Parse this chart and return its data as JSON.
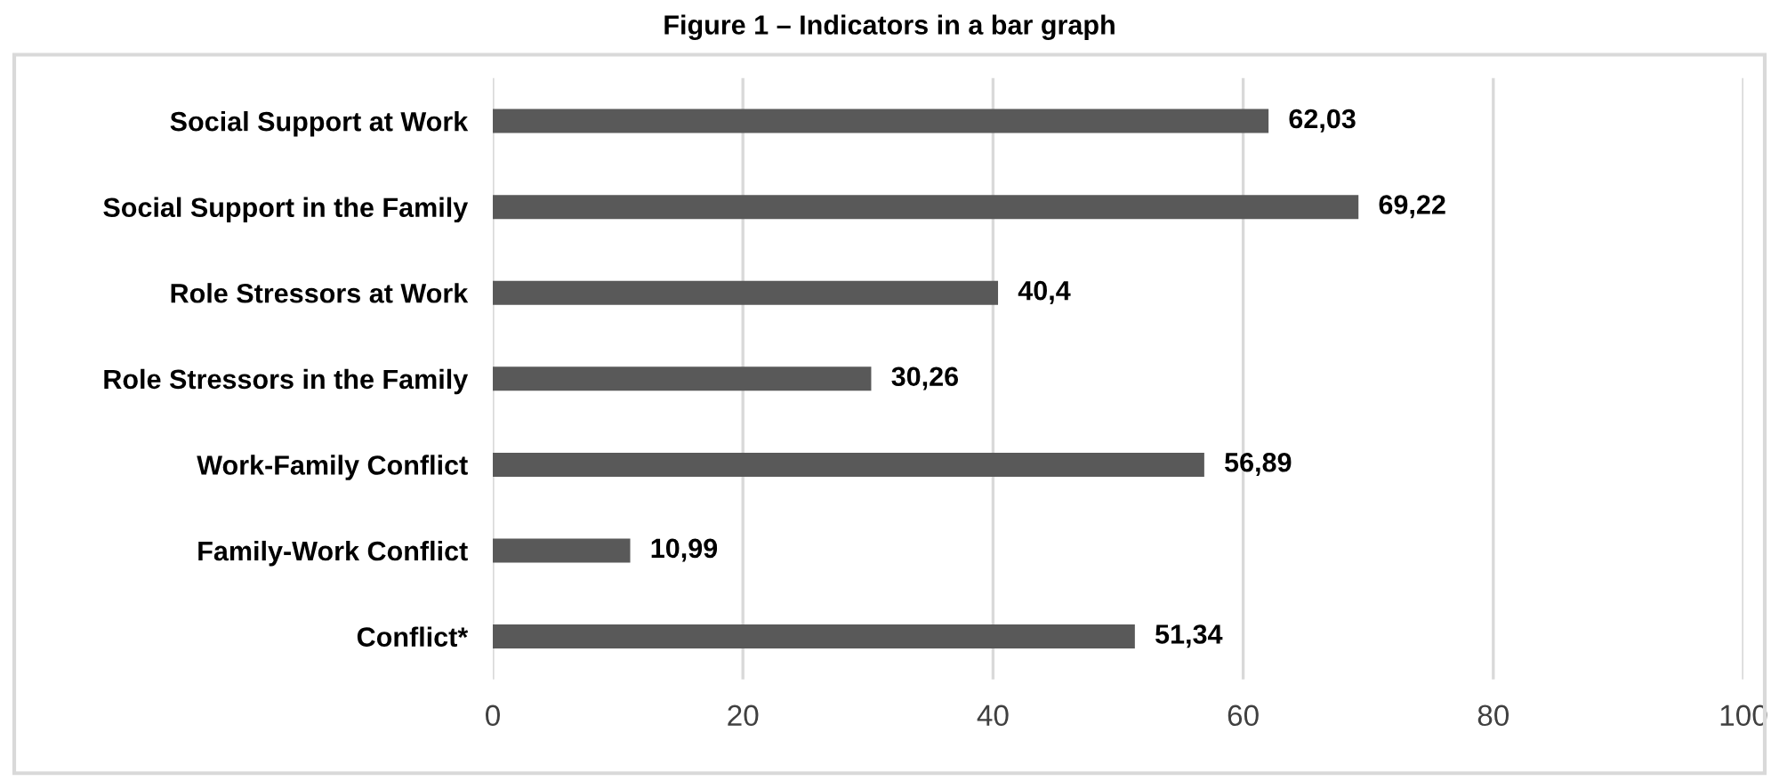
{
  "chart_data": {
    "type": "bar",
    "orientation": "horizontal",
    "title": "Figure 1 – Indicators in a bar graph",
    "categories": [
      "Social Support at Work",
      "Social Support in the Family",
      "Role Stressors at Work",
      "Role Stressors in the Family",
      "Work-Family Conflict",
      "Family-Work Conflict",
      "Conflict*"
    ],
    "values": [
      62.03,
      69.22,
      40.4,
      30.26,
      56.89,
      10.99,
      51.34
    ],
    "value_labels": [
      "62,03",
      "69,22",
      "40,4",
      "30,26",
      "56,89",
      "10,99",
      "51,34"
    ],
    "color": "#595959",
    "xlim": [
      0,
      100
    ],
    "xticks": [
      0,
      20,
      40,
      60,
      80,
      100
    ],
    "grid": "x"
  }
}
